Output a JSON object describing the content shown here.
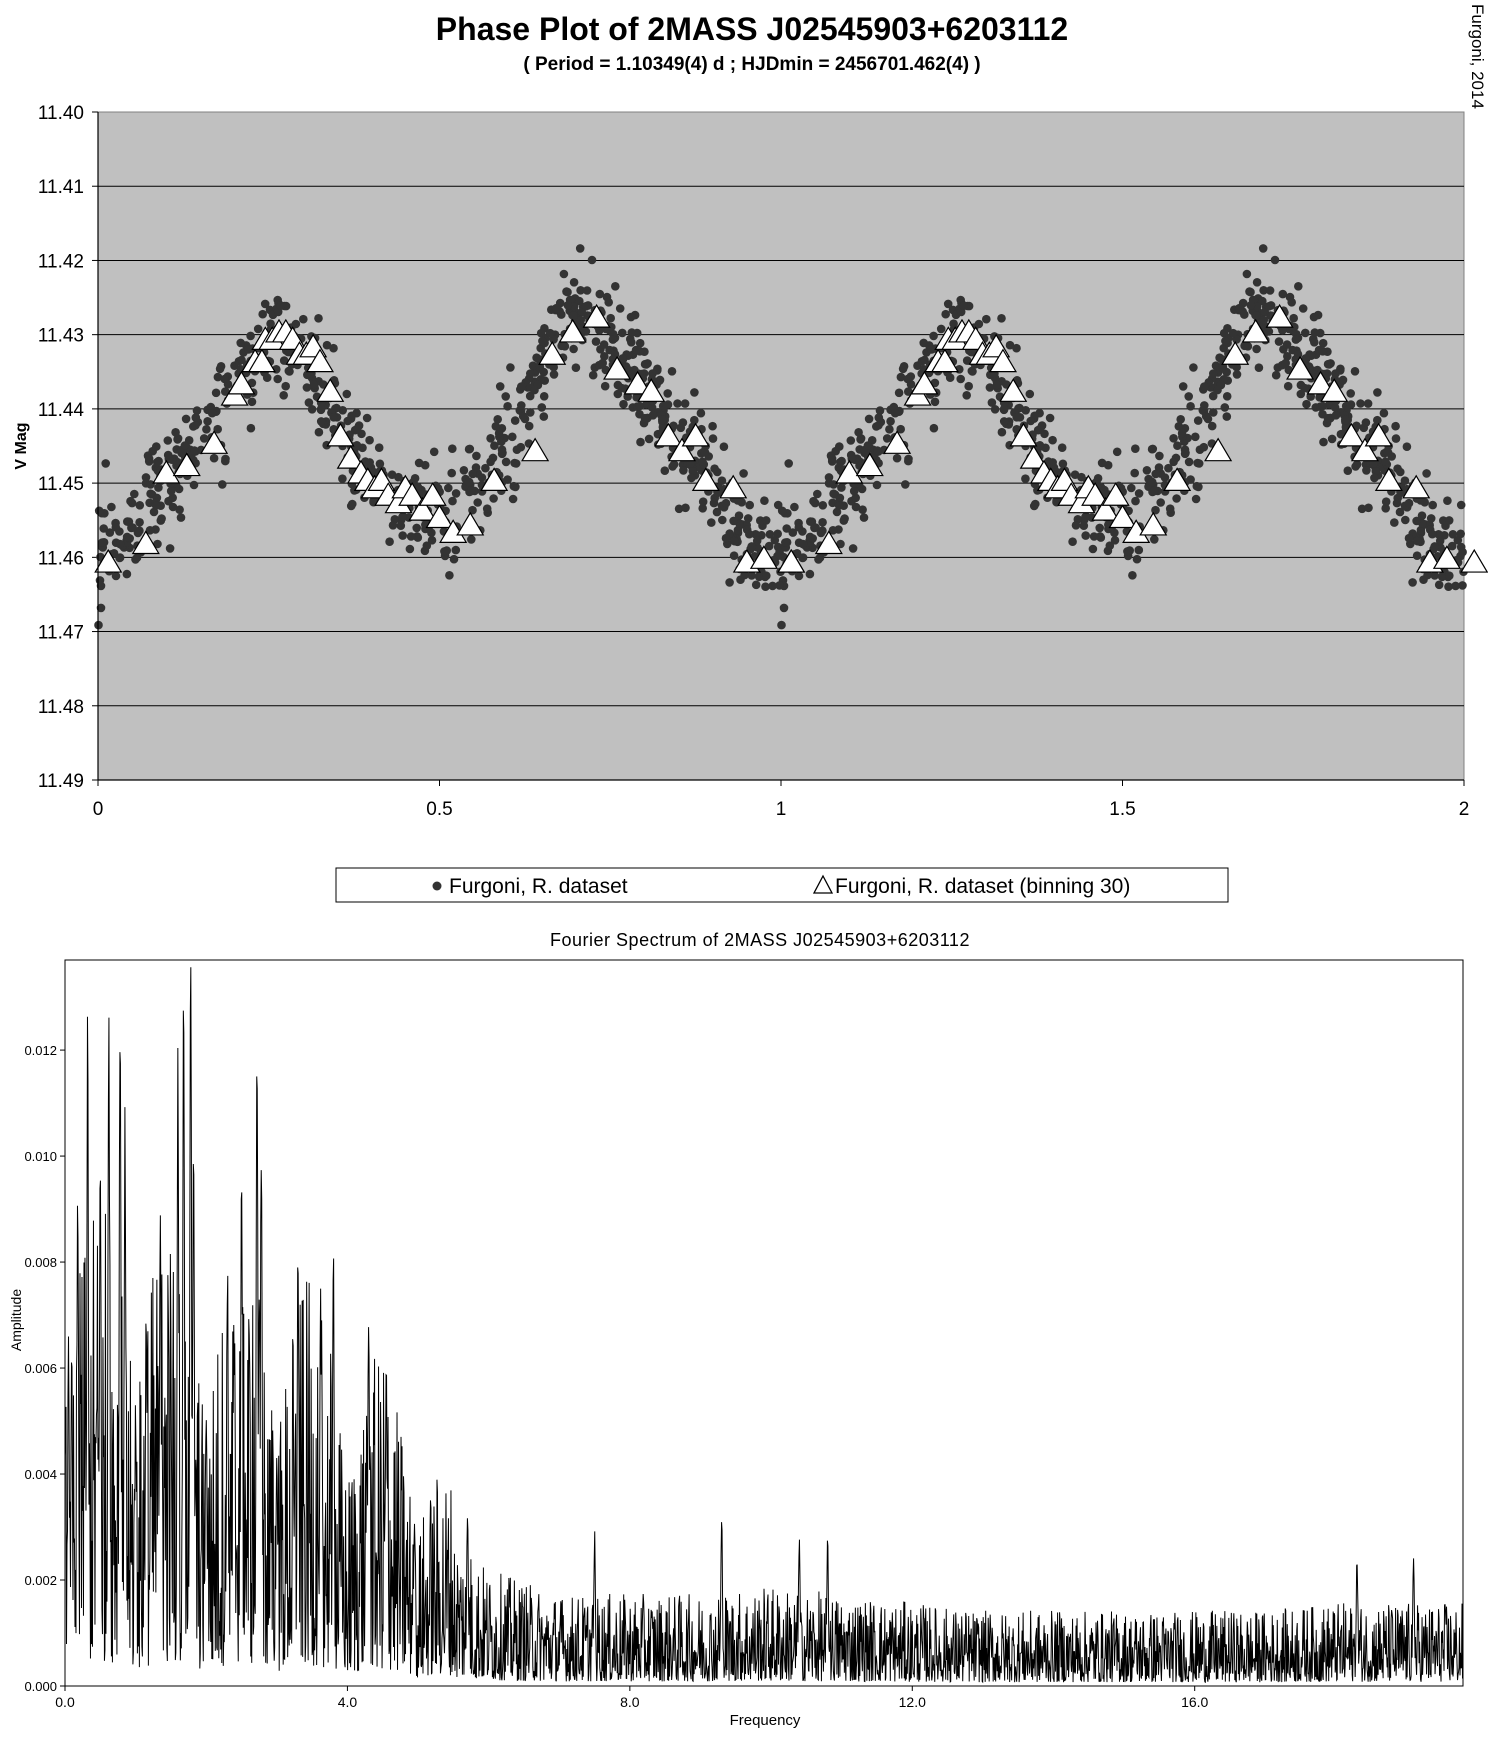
{
  "credit": "Furgoni, 2014",
  "chart_data": [
    {
      "type": "scatter",
      "title": "Phase Plot of 2MASS J02545903+6203112",
      "subtitle": "( Period = 1.10349(4) d ; HJDmin = 2456701.462(4) )",
      "xlabel": "",
      "ylabel": "V Mag",
      "xlim": [
        0,
        2
      ],
      "ylim": [
        11.4,
        11.49
      ],
      "y_inverted": true,
      "grid": true,
      "background": "#c0c0c0",
      "xticks": [
        "0",
        "0.5",
        "1",
        "1.5",
        "2"
      ],
      "yticks": [
        "11.40",
        "11.41",
        "11.42",
        "11.43",
        "11.44",
        "11.45",
        "11.46",
        "11.47",
        "11.48",
        "11.49"
      ],
      "legend_position": "bottom",
      "series": [
        {
          "name": "Furgoni, R. dataset",
          "marker": "dot",
          "color": "#333333",
          "model_curve": {
            "x": [
              0.0,
              0.05,
              0.1,
              0.15,
              0.2,
              0.25,
              0.29,
              0.33,
              0.37,
              0.42,
              0.47,
              0.52,
              0.58,
              0.63,
              0.68,
              0.73,
              0.79,
              0.85,
              0.91,
              0.96,
              1.0
            ],
            "y": [
              11.46,
              11.456,
              11.449,
              11.444,
              11.437,
              11.43,
              11.431,
              11.437,
              11.445,
              11.45,
              11.454,
              11.454,
              11.448,
              11.44,
              11.428,
              11.428,
              11.436,
              11.444,
              11.451,
              11.46,
              11.46
            ]
          },
          "scatter_amplitude": 0.0045,
          "n_points_per_cycle": 900
        },
        {
          "name": "Furgoni, R. dataset (binning 30)",
          "marker": "triangle",
          "color": "#ffffff",
          "x": [
            0.015,
            0.07,
            0.1,
            0.13,
            0.17,
            0.2,
            0.21,
            0.23,
            0.24,
            0.245,
            0.255,
            0.265,
            0.275,
            0.285,
            0.295,
            0.305,
            0.315,
            0.325,
            0.34,
            0.355,
            0.37,
            0.385,
            0.395,
            0.405,
            0.415,
            0.425,
            0.44,
            0.45,
            0.46,
            0.475,
            0.49,
            0.5,
            0.52,
            0.545,
            0.58,
            0.64,
            0.665,
            0.695,
            0.73,
            0.76,
            0.79,
            0.81,
            0.835,
            0.855,
            0.875,
            0.89,
            0.93,
            0.95,
            0.975,
            1.015
          ],
          "y": [
            11.4605,
            11.458,
            11.4485,
            11.4475,
            11.4445,
            11.438,
            11.4365,
            11.4335,
            11.4335,
            11.4305,
            11.4305,
            11.4295,
            11.4295,
            11.4305,
            11.4325,
            11.4325,
            11.4315,
            11.4335,
            11.4375,
            11.4435,
            11.4465,
            11.4485,
            11.4495,
            11.4505,
            11.4495,
            11.4515,
            11.4525,
            11.4505,
            11.4515,
            11.4535,
            11.4515,
            11.4545,
            11.4565,
            11.4555,
            11.4495,
            11.4455,
            11.4325,
            11.4295,
            11.4275,
            11.4345,
            11.4365,
            11.4375,
            11.4435,
            11.4455,
            11.4435,
            11.4495,
            11.4505,
            11.4605,
            11.46,
            11.4605
          ]
        }
      ]
    },
    {
      "type": "line",
      "title": "Fourier Spectrum of 2MASS J02545903+6203112",
      "xlabel": "Frequency",
      "ylabel": "Amplitude",
      "xlim": [
        0,
        19.8
      ],
      "ylim": [
        0,
        0.0137
      ],
      "xticks": [
        "0.0",
        "4.0",
        "8.0",
        "12.0",
        "16.0"
      ],
      "yticks": [
        "0.000",
        "0.002",
        "0.004",
        "0.006",
        "0.008",
        "0.010",
        "0.012"
      ],
      "grid": false,
      "series": [
        {
          "name": "",
          "color": "#000000",
          "envelope": {
            "x": [
              0.0,
              0.5,
              1.0,
              1.5,
              2.0,
              2.5,
              3.0,
              3.5,
              4.0,
              4.5,
              5.0,
              5.5,
              6.0,
              7.0,
              8.0,
              9.0,
              10.0,
              11.0,
              12.0,
              13.0,
              14.0,
              15.0,
              16.0,
              17.0,
              18.0,
              19.0,
              19.8
            ],
            "y": [
              0.0048,
              0.0045,
              0.0047,
              0.0043,
              0.0044,
              0.0041,
              0.0042,
              0.0037,
              0.0035,
              0.003,
              0.0026,
              0.0019,
              0.0014,
              0.0011,
              0.0011,
              0.0011,
              0.0012,
              0.0011,
              0.001,
              0.0009,
              0.0009,
              0.0009,
              0.0009,
              0.0009,
              0.001,
              0.001,
              0.001
            ]
          },
          "peaks": {
            "x": [
              0.05,
              0.18,
              0.32,
              0.5,
              0.62,
              0.78,
              0.85,
              1.0,
              1.15,
              1.35,
              1.6,
              1.68,
              1.78,
              1.82,
              2.0,
              2.3,
              2.5,
              2.72,
              2.78,
              3.0,
              3.3,
              3.62,
              3.8,
              4.3,
              4.55,
              4.95,
              5.7,
              7.5,
              9.3,
              10.4,
              10.8,
              18.3,
              19.1
            ],
            "y": [
              0.0085,
              0.0093,
              0.0106,
              0.008,
              0.0112,
              0.0131,
              0.0113,
              0.008,
              0.0078,
              0.0082,
              0.0098,
              0.0124,
              0.0134,
              0.011,
              0.008,
              0.0072,
              0.0079,
              0.0116,
              0.0105,
              0.0065,
              0.0073,
              0.006,
              0.0084,
              0.0065,
              0.005,
              0.0045,
              0.0035,
              0.003,
              0.0034,
              0.0031,
              0.0029,
              0.0026,
              0.0026
            ]
          },
          "n_samples": 2800
        }
      ]
    }
  ]
}
